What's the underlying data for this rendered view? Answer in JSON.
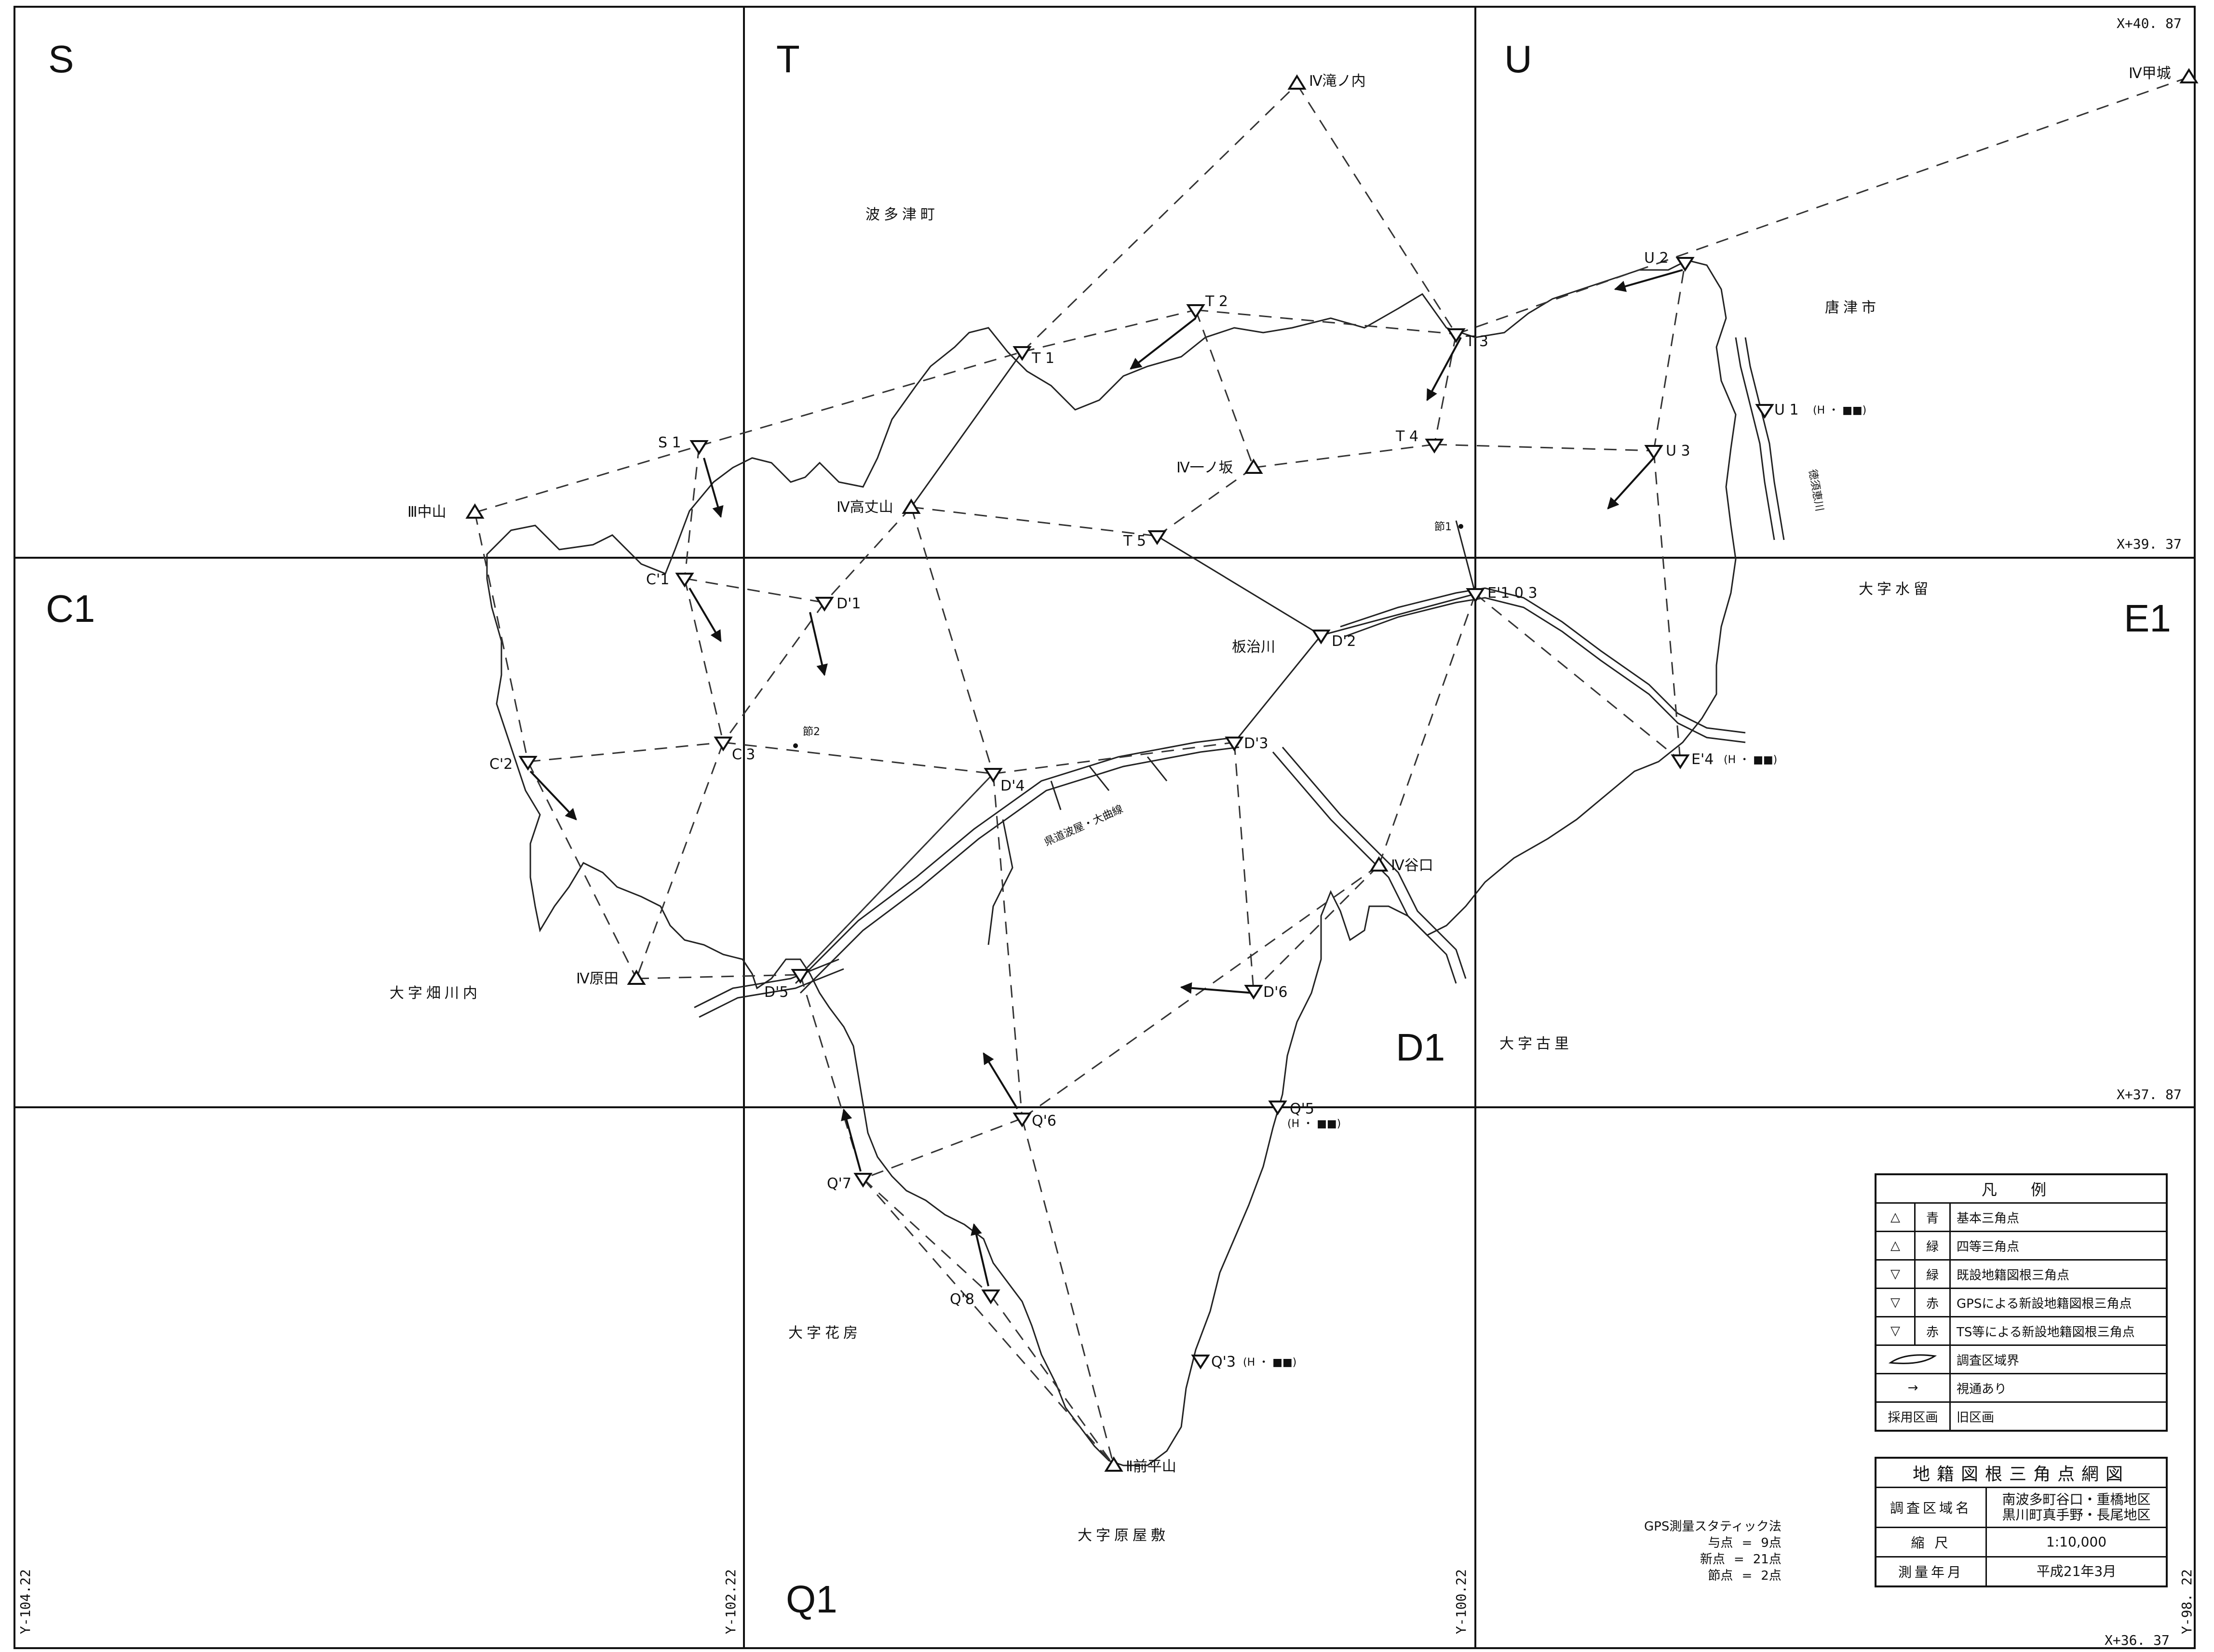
{
  "sheet_letters": [
    "S",
    "T",
    "U",
    "C1",
    "E1",
    "D1",
    "Q1"
  ],
  "coords": {
    "top_right": "X+40. 87",
    "mid1": "X+39. 37",
    "mid2": "X+37. 87",
    "bottom": "X+36. 37",
    "y1": "Y-104.22",
    "y2": "Y-102.22",
    "y3": "Y-100.22",
    "y4": "Y-98. 22"
  },
  "areas": {
    "hatatsu": "波多津町",
    "karatsu": "唐津市",
    "mizudome": "大字水留",
    "hatakawa": "大字畑川内",
    "furusato": "大字古里",
    "hanabusa": "大字花房",
    "harayashiki": "大字原屋敷"
  },
  "rivers": {
    "itaji": "板治川",
    "tokusuke": "徳須恵川"
  },
  "road": "県道波屋・大曲線",
  "points": {
    "takinouchi": "Ⅳ滝ノ内",
    "kojo": "Ⅳ甲城",
    "nakayama": "Ⅲ中山",
    "takajoyama": "Ⅳ高丈山",
    "ichinosaka": "Ⅳ一ノ坂",
    "taniguchi": "Ⅳ谷口",
    "harada": "Ⅳ原田",
    "maehirayama": "Ⅱ前平山",
    "S1": "S 1",
    "T1": "T 1",
    "T2": "T 2",
    "T3": "T 3",
    "T4": "T 4",
    "T5": "T 5",
    "U1": "U 1",
    "U2": "U 2",
    "U3": "U 3",
    "C1": "C'1",
    "C2": "C'2",
    "C3": "C'3",
    "D1": "D'1",
    "D2": "D'2",
    "D3": "D'3",
    "D4": "D'4",
    "D5": "D'5",
    "D6": "D'6",
    "E103": "E'1 0 3",
    "E4": "E'4",
    "Q3": "Q'3",
    "Q5": "Q'5",
    "Q6": "Q'6",
    "Q7": "Q'7",
    "Q8": "Q'8",
    "setsu1": "節1",
    "setsu2": "節2",
    "h_note": "(H  ・  ■■)"
  },
  "legend": {
    "title": "凡  例",
    "rows": [
      {
        "symbol": "△",
        "color": "青",
        "text": "基本三角点"
      },
      {
        "symbol": "△",
        "color": "緑",
        "text": "四等三角点"
      },
      {
        "symbol": "▽",
        "color": "緑",
        "text": "既設地籍図根三角点"
      },
      {
        "symbol": "▽",
        "color": "赤",
        "text": "GPSによる新設地籍図根三角点"
      },
      {
        "symbol": "▽",
        "color": "赤",
        "text": "TS等による新設地籍図根三角点"
      },
      {
        "symbol": "",
        "color": "",
        "text": "調査区域界"
      },
      {
        "symbol": "→",
        "color": "",
        "text": "視通あり"
      },
      {
        "symbol": "採用区画",
        "color": "",
        "text": "旧区画"
      }
    ]
  },
  "titlebox": {
    "title": "地籍図根三角点網図",
    "survey_area_label": "調査区域名",
    "survey_area_line1": "南波多町谷口・重橋地区",
    "survey_area_line2": "黒川町真手野・長尾地区",
    "scale_label": "縮     尺",
    "scale_value": "1:10,000",
    "date_label": "測量年月",
    "date_value": "平成21年3月"
  },
  "gps": {
    "heading": "GPS測量スタティック法",
    "given_label": "与点",
    "given_value": "9点",
    "new_label": "新点",
    "new_value": "21点",
    "node_label": "節点",
    "node_value": "2点",
    "eq": "="
  }
}
